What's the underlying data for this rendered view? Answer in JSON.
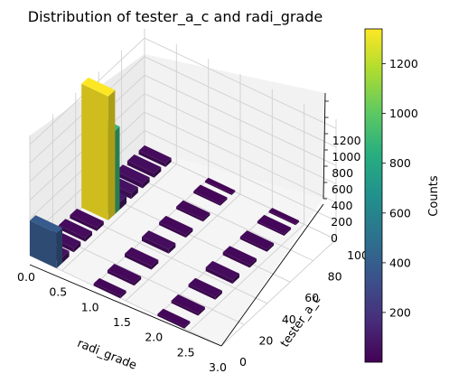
{
  "chart_data": {
    "type": "3d-bar",
    "title": "Distribution of tester_a_c and radi_grade",
    "xlabel": "radi_grade",
    "ylabel": "tester_a_c",
    "zlabel": "",
    "colorbar_label": "Counts",
    "colormap": "viridis",
    "xlim": [
      0,
      3
    ],
    "ylim": [
      0,
      100
    ],
    "zlim": [
      0,
      1300
    ],
    "xticks": [
      "0.0",
      "0.5",
      "1.0",
      "1.5",
      "2.0",
      "2.5",
      "3.0"
    ],
    "yticks": [
      "0",
      "20",
      "40",
      "60",
      "80",
      "100"
    ],
    "zticks": [
      "0",
      "200",
      "400",
      "600",
      "800",
      "1000",
      "1200"
    ],
    "colorbar_ticks": [
      "200",
      "400",
      "600",
      "800",
      "1000",
      "1200"
    ],
    "colorbar_range": [
      0,
      1340
    ],
    "groups": [
      {
        "x": 0.0,
        "bars": [
          {
            "y": 2,
            "count": 380
          },
          {
            "y": 8,
            "count": 60
          },
          {
            "y": 18,
            "count": 45
          },
          {
            "y": 28,
            "count": 40
          },
          {
            "y": 38,
            "count": 35
          },
          {
            "y": 48,
            "count": 1340
          },
          {
            "y": 52,
            "count": 900
          },
          {
            "y": 58,
            "count": 80
          },
          {
            "y": 68,
            "count": 60
          },
          {
            "y": 78,
            "count": 50
          },
          {
            "y": 88,
            "count": 45
          },
          {
            "y": 98,
            "count": 40
          }
        ]
      },
      {
        "x": 1.0,
        "bars": [
          {
            "y": 2,
            "count": 25
          },
          {
            "y": 15,
            "count": 30
          },
          {
            "y": 30,
            "count": 35
          },
          {
            "y": 45,
            "count": 45
          },
          {
            "y": 60,
            "count": 30
          },
          {
            "y": 75,
            "count": 25
          },
          {
            "y": 90,
            "count": 20
          },
          {
            "y": 100,
            "count": 15
          }
        ]
      },
      {
        "x": 2.0,
        "bars": [
          {
            "y": 2,
            "count": 20
          },
          {
            "y": 15,
            "count": 25
          },
          {
            "y": 30,
            "count": 30
          },
          {
            "y": 45,
            "count": 40
          },
          {
            "y": 60,
            "count": 30
          },
          {
            "y": 75,
            "count": 25
          },
          {
            "y": 90,
            "count": 20
          },
          {
            "y": 100,
            "count": 15
          }
        ]
      }
    ]
  }
}
